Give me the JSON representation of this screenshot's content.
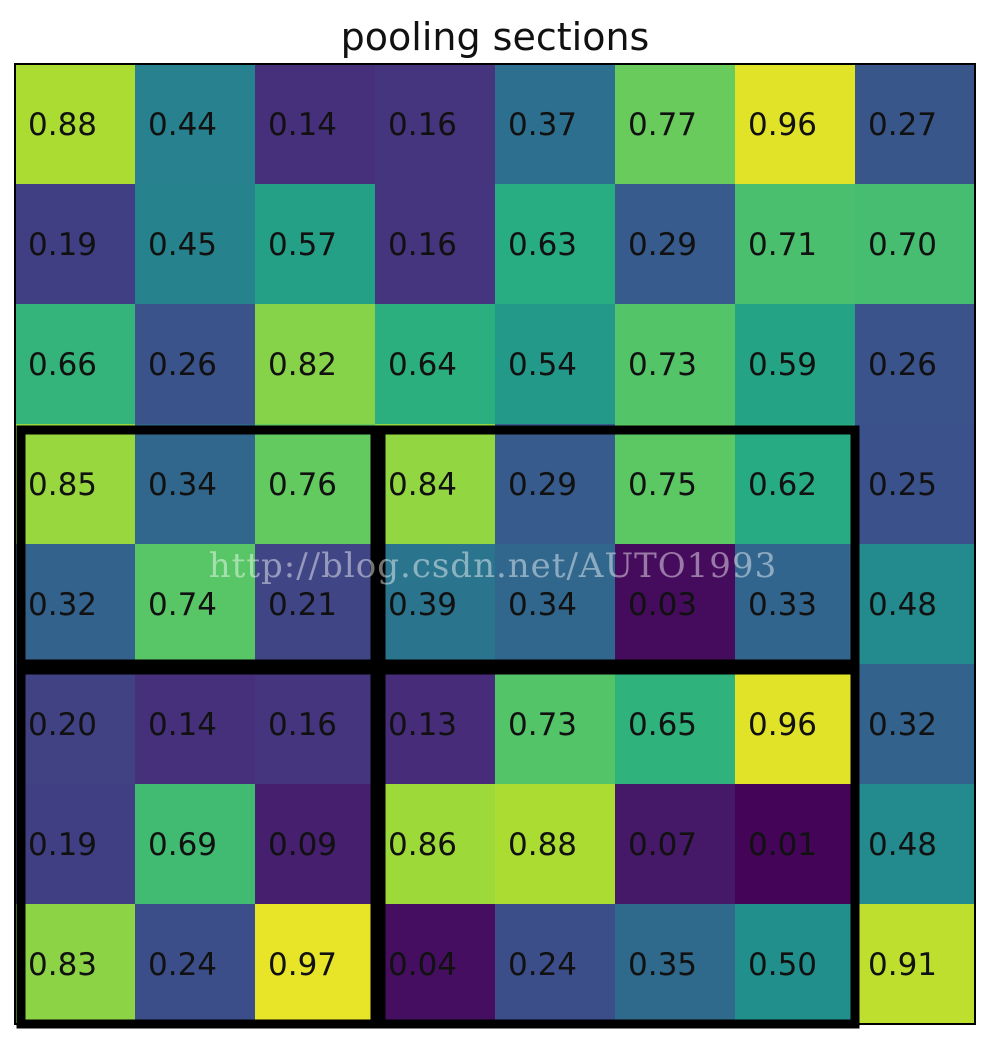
{
  "chart_data": {
    "type": "heatmap",
    "title": "pooling sections",
    "colormap": "viridis",
    "value_range": [
      0,
      1
    ],
    "values": [
      [
        0.88,
        0.44,
        0.14,
        0.16,
        0.37,
        0.77,
        0.96,
        0.27
      ],
      [
        0.19,
        0.45,
        0.57,
        0.16,
        0.63,
        0.29,
        0.71,
        0.7
      ],
      [
        0.66,
        0.26,
        0.82,
        0.64,
        0.54,
        0.73,
        0.59,
        0.26
      ],
      [
        0.85,
        0.34,
        0.76,
        0.84,
        0.29,
        0.75,
        0.62,
        0.25
      ],
      [
        0.32,
        0.74,
        0.21,
        0.39,
        0.34,
        0.03,
        0.33,
        0.48
      ],
      [
        0.2,
        0.14,
        0.16,
        0.13,
        0.73,
        0.65,
        0.96,
        0.32
      ],
      [
        0.19,
        0.69,
        0.09,
        0.86,
        0.88,
        0.07,
        0.01,
        0.48
      ],
      [
        0.83,
        0.24,
        0.97,
        0.04,
        0.24,
        0.35,
        0.5,
        0.91
      ]
    ],
    "labels": [
      [
        "0.88",
        "0.44",
        "0.14",
        "0.16",
        "0.37",
        "0.77",
        "0.96",
        "0.27"
      ],
      [
        "0.19",
        "0.45",
        "0.57",
        "0.16",
        "0.63",
        "0.29",
        "0.71",
        "0.70"
      ],
      [
        "0.66",
        "0.26",
        "0.82",
        "0.64",
        "0.54",
        "0.73",
        "0.59",
        "0.26"
      ],
      [
        "0.85",
        "0.34",
        "0.76",
        "0.84",
        "0.29",
        "0.75",
        "0.62",
        "0.25"
      ],
      [
        "0.32",
        "0.74",
        "0.21",
        "0.39",
        "0.34",
        "0.03",
        "0.33",
        "0.48"
      ],
      [
        "0.20",
        "0.14",
        "0.16",
        "0.13",
        "0.73",
        "0.65",
        "0.96",
        "0.32"
      ],
      [
        "0.19",
        "0.69",
        "0.09",
        "0.86",
        "0.88",
        "0.07",
        "0.01",
        "0.48"
      ],
      [
        "0.83",
        "0.24",
        "0.97",
        "0.04",
        "0.24",
        "0.35",
        "0.50",
        "0.91"
      ]
    ],
    "pooling_sections": [
      {
        "row_start": 3,
        "row_end": 4,
        "col_start": 0,
        "col_end": 2
      },
      {
        "row_start": 3,
        "row_end": 4,
        "col_start": 3,
        "col_end": 6
      },
      {
        "row_start": 5,
        "row_end": 7,
        "col_start": 0,
        "col_end": 2
      },
      {
        "row_start": 5,
        "row_end": 7,
        "col_start": 3,
        "col_end": 6
      }
    ],
    "section_stroke_color": "#000000"
  },
  "watermark": "http://blog.csdn.net/AUTO1993"
}
